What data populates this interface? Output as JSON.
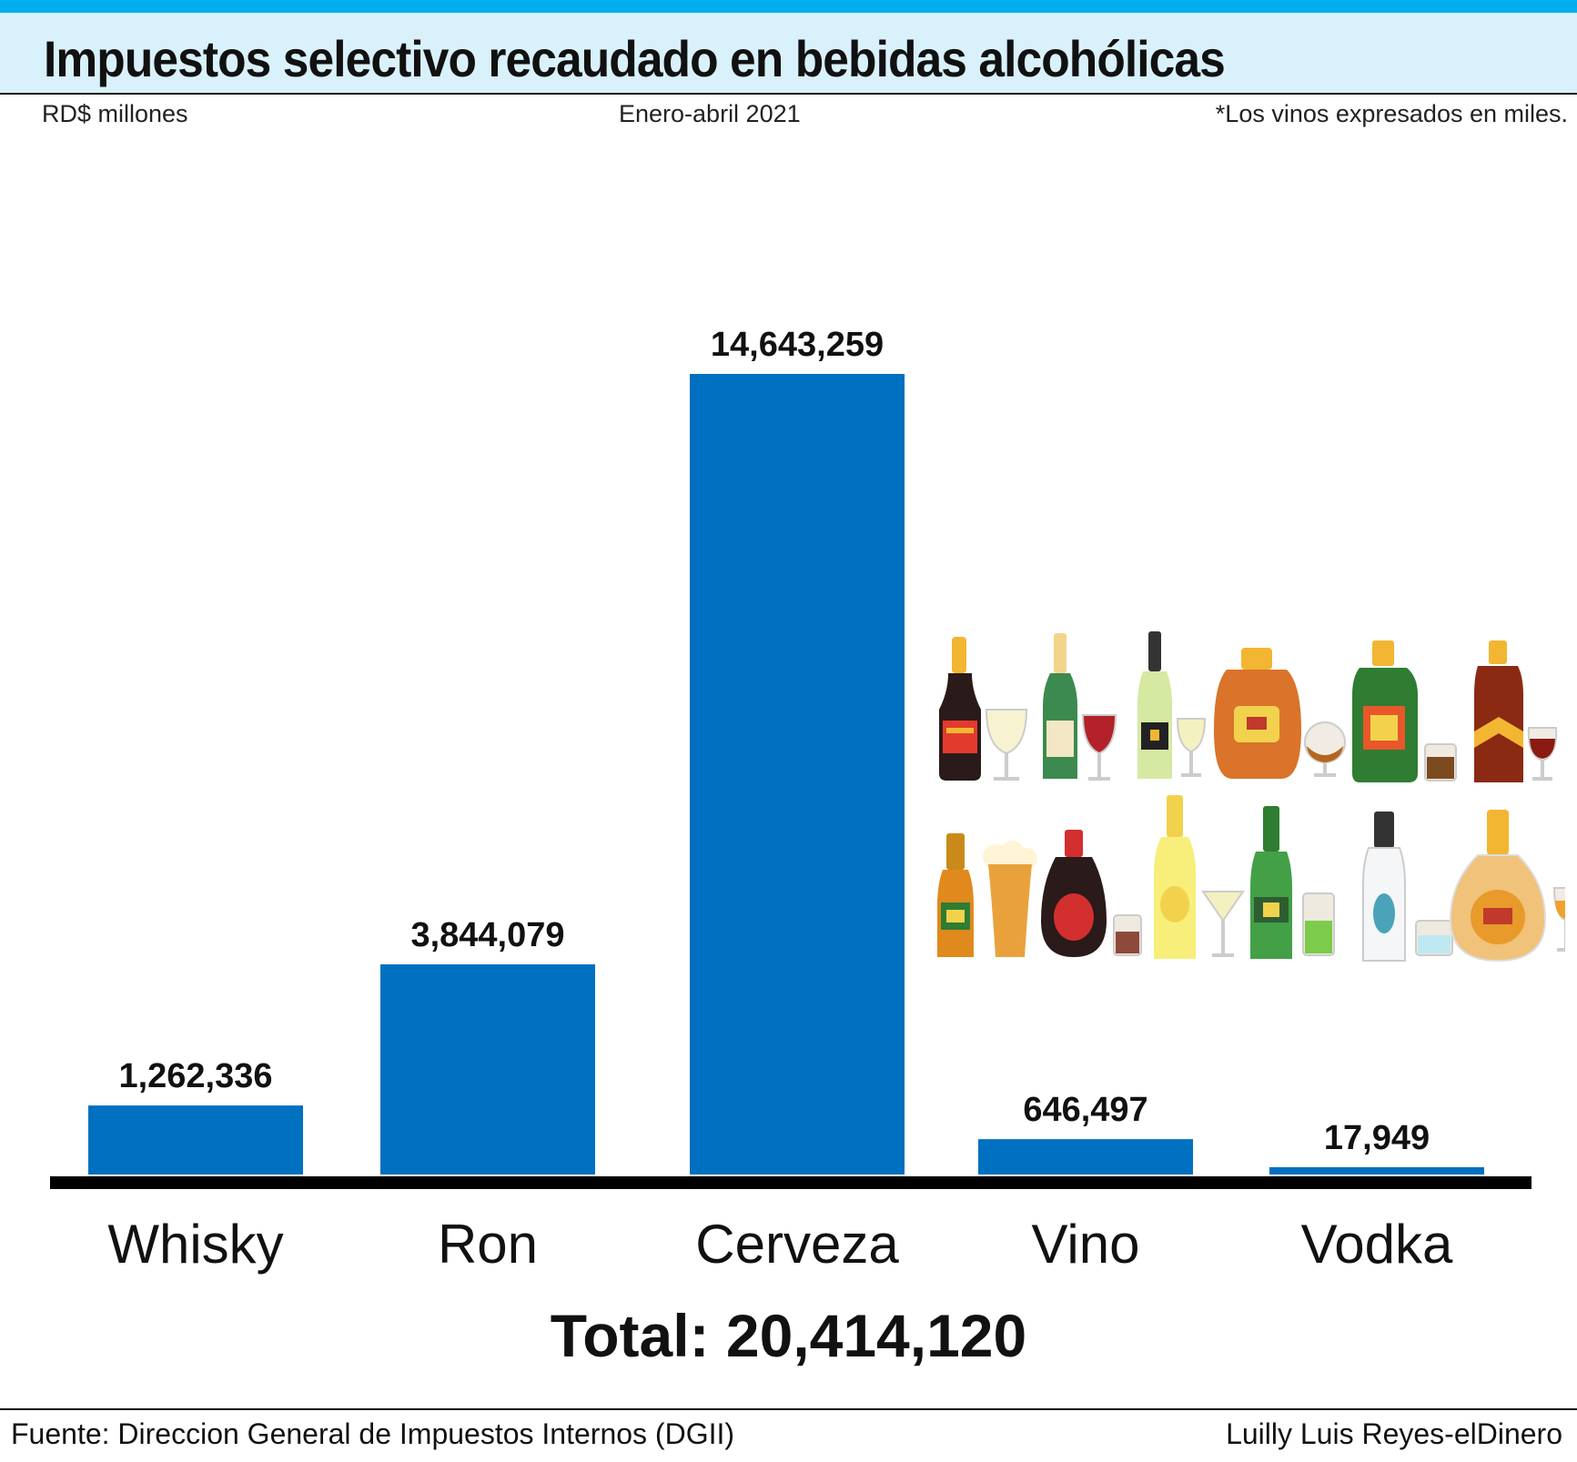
{
  "header": {
    "title": "Impuestos selectivo recaudado en bebidas alcohólicas",
    "unit": "RD$ millones",
    "period": "Enero-abril 2021",
    "note": "*Los vinos expresados en miles."
  },
  "chart_data": {
    "type": "bar",
    "title": "Impuestos selectivo recaudado en bebidas alcohólicas",
    "subtitle": "Enero-abril 2021",
    "xlabel": "",
    "ylabel": "RD$ millones",
    "categories": [
      "Whisky",
      "Ron",
      "Cerveza",
      "Vino",
      "Vodka"
    ],
    "values": [
      1262336,
      3844079,
      14643259,
      646497,
      17949
    ],
    "value_labels": [
      "1,262,336",
      "3,844,079",
      "14,643,259",
      "646,497",
      "17,949"
    ],
    "ylim": [
      0,
      14643259
    ],
    "grid": false,
    "legend": "none",
    "bar_color": "#0070c0"
  },
  "total": "Total: 20,414,120",
  "footer": {
    "source": "Fuente: Direccion General de Impuestos Internos (DGII)",
    "credit": "Luilly Luis Reyes-elDinero"
  },
  "colors": {
    "accent": "#00aeef",
    "title_band": "#d9f1fb",
    "bar": "#0070c0"
  },
  "illustration": {
    "icons": [
      "champagne-bottle-icon",
      "wine-bottle-icon",
      "liquor-bottle-icon",
      "cognac-bottle-icon",
      "whisky-bottle-icon",
      "beer-bottle-icon",
      "beer-glass-icon",
      "vodka-bottle-icon",
      "wine-glass-icon",
      "cocktail-glass-icon",
      "shot-glass-icon"
    ]
  }
}
